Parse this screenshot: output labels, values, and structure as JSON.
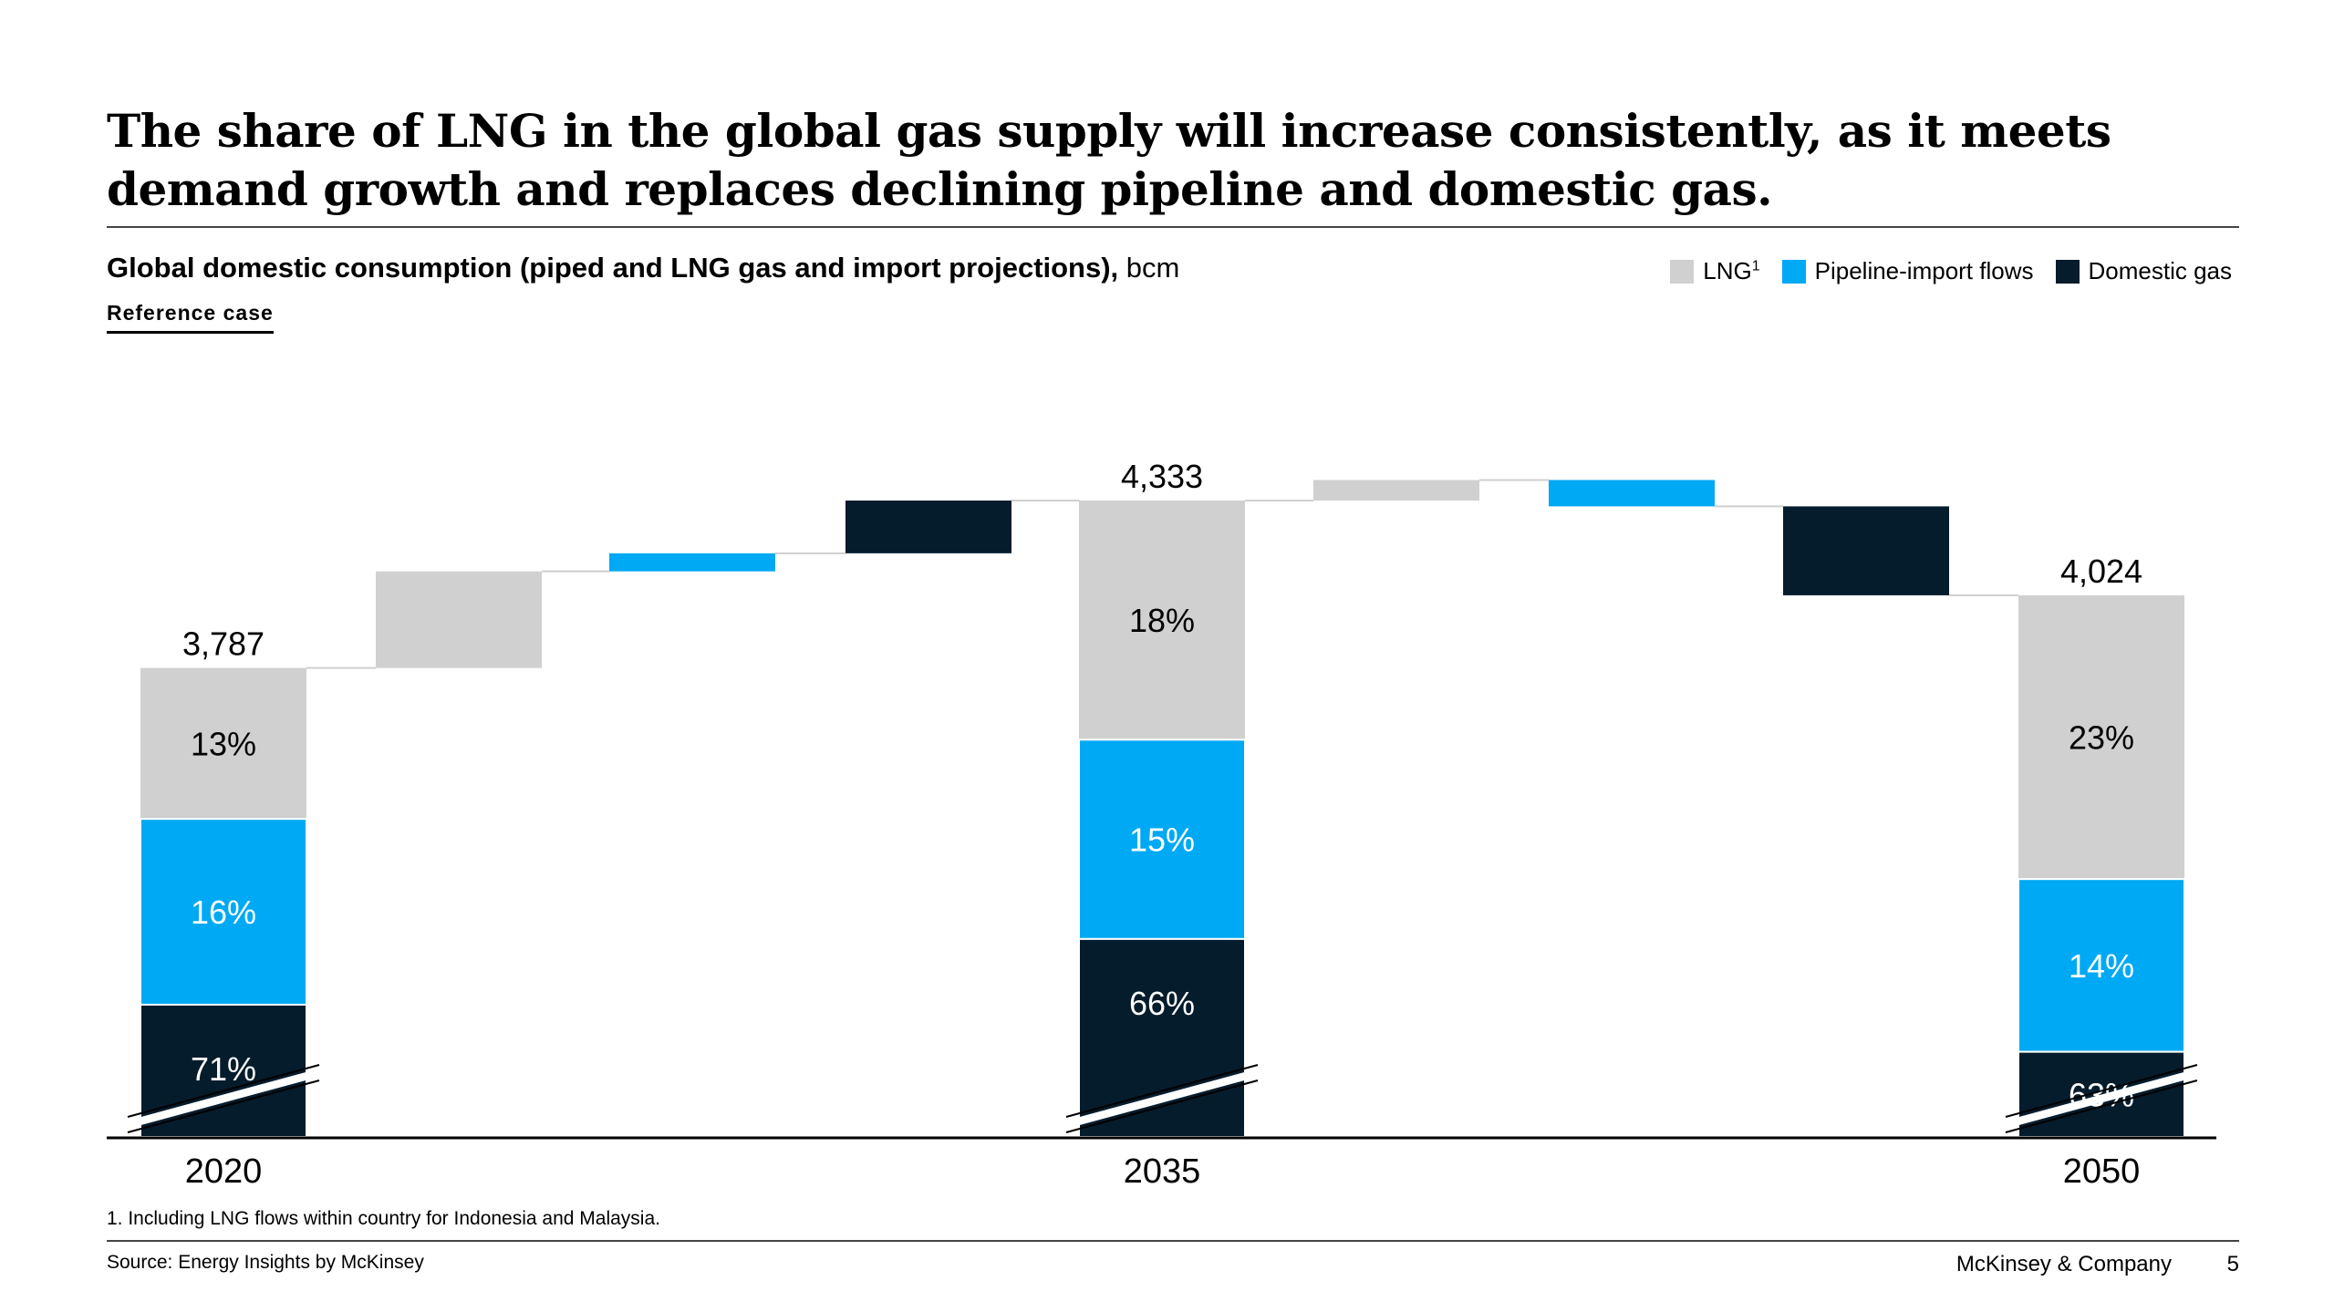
{
  "title": "The share of LNG in the global gas supply will increase consistently, as it meets demand growth and replaces declining pipeline and domestic gas.",
  "subtitle_bold": "Global domestic consumption (piped and LNG gas and import projections),",
  "subtitle_unit": " bcm",
  "scenario_tab": "Reference case",
  "legend": [
    {
      "label": "LNG",
      "sup": "1",
      "color": "#d0d0d0"
    },
    {
      "label": "Pipeline-import flows",
      "sup": "",
      "color": "#00a9f4"
    },
    {
      "label": "Domestic gas",
      "sup": "",
      "color": "#051c2c"
    }
  ],
  "footnote": "1. Including LNG flows within country for Indonesia and Malaysia.",
  "source": "Source: Energy Insights by McKinsey",
  "brand": "McKinsey & Company",
  "page_number": "5",
  "chart_data": {
    "type": "waterfall",
    "unit": "bcm",
    "totals": [
      {
        "year": "2020",
        "total": 3787,
        "total_label": "3,787",
        "shares": {
          "LNG": 13,
          "Pipeline-import flows": 16,
          "Domestic gas": 71
        },
        "share_labels": [
          "13%",
          "16%",
          "71%"
        ]
      },
      {
        "year": "2035",
        "total": 4333,
        "total_label": "4,333",
        "shares": {
          "LNG": 18,
          "Pipeline-import flows": 15,
          "Domestic gas": 66
        },
        "share_labels": [
          "18%",
          "15%",
          "66%"
        ]
      },
      {
        "year": "2050",
        "total": 4024,
        "total_label": "4,024",
        "shares": {
          "LNG": 23,
          "Pipeline-import flows": 14,
          "Domestic gas": 63
        },
        "share_labels": [
          "23%",
          "14%",
          "63%"
        ]
      }
    ],
    "changes": [
      {
        "from": "2020",
        "to": "2035",
        "deltas": [
          {
            "series": "LNG",
            "value": 315
          },
          {
            "series": "Pipeline-import flows",
            "value": 59
          },
          {
            "series": "Domestic gas",
            "value": 172
          }
        ]
      },
      {
        "from": "2035",
        "to": "2050",
        "deltas": [
          {
            "series": "LNG",
            "value": 67
          },
          {
            "series": "Pipeline-import flows",
            "value": -86
          },
          {
            "series": "Domestic gas",
            "value": -290
          }
        ]
      }
    ],
    "axis_broken": true,
    "grid": false
  }
}
